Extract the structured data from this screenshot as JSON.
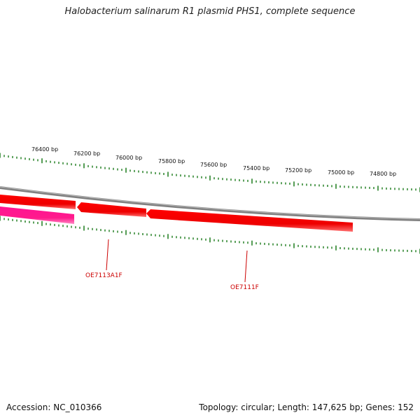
{
  "title": "Halobacterium salinarum R1 plasmid PHS1, complete sequence",
  "footer": {
    "accession": "Accession: NC_010366",
    "summary": "Topology: circular; Length: 147,625 bp; Genes: 152"
  },
  "ticks": {
    "labels": [
      "76400 bp",
      "76200 bp",
      "76000 bp",
      "75800 bp",
      "75600 bp",
      "75400 bp",
      "75200 bp",
      "75000 bp",
      "74800 bp"
    ]
  },
  "genes": [
    {
      "label": "OE7113A1F",
      "color": "#ff0000"
    },
    {
      "label": "OE7111F",
      "color": "#ff0000"
    }
  ],
  "colors": {
    "backbone": "#808080",
    "gene_forward": "#ff0000",
    "gene_other": "#ff1a8c",
    "tick": "#1a7a1a",
    "label_gene": "#cc0000"
  }
}
